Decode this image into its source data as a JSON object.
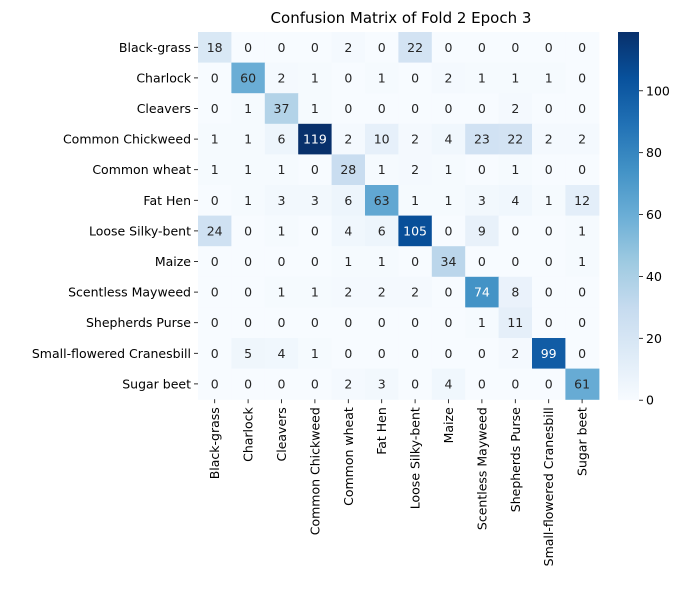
{
  "chart_data": {
    "type": "heatmap",
    "title": "Confusion Matrix of Fold 2 Epoch 3",
    "xlabel": "",
    "ylabel": "",
    "row_labels": [
      "Black-grass",
      "Charlock",
      "Cleavers",
      "Common Chickweed",
      "Common wheat",
      "Fat Hen",
      "Loose Silky-bent",
      "Maize",
      "Scentless Mayweed",
      "Shepherds Purse",
      "Small-flowered Cranesbill",
      "Sugar beet"
    ],
    "col_labels": [
      "Black-grass",
      "Charlock",
      "Cleavers",
      "Common Chickweed",
      "Common wheat",
      "Fat Hen",
      "Loose Silky-bent",
      "Maize",
      "Scentless Mayweed",
      "Shepherds Purse",
      "Small-flowered Cranesbill",
      "Sugar beet"
    ],
    "values": [
      [
        18,
        0,
        0,
        0,
        2,
        0,
        22,
        0,
        0,
        0,
        0,
        0
      ],
      [
        0,
        60,
        2,
        1,
        0,
        1,
        0,
        2,
        1,
        1,
        1,
        0
      ],
      [
        0,
        1,
        37,
        1,
        0,
        0,
        0,
        0,
        0,
        2,
        0,
        0
      ],
      [
        1,
        1,
        6,
        119,
        2,
        10,
        2,
        4,
        23,
        22,
        2,
        2
      ],
      [
        1,
        1,
        1,
        0,
        28,
        1,
        2,
        1,
        0,
        1,
        0,
        0
      ],
      [
        0,
        1,
        3,
        3,
        6,
        63,
        1,
        1,
        3,
        4,
        1,
        12
      ],
      [
        24,
        0,
        1,
        0,
        4,
        6,
        105,
        0,
        9,
        0,
        0,
        1
      ],
      [
        0,
        0,
        0,
        0,
        1,
        1,
        0,
        34,
        0,
        0,
        0,
        1
      ],
      [
        0,
        0,
        1,
        1,
        2,
        2,
        2,
        0,
        74,
        8,
        0,
        0
      ],
      [
        0,
        0,
        0,
        0,
        0,
        0,
        0,
        0,
        1,
        11,
        0,
        0
      ],
      [
        0,
        5,
        4,
        1,
        0,
        0,
        0,
        0,
        0,
        2,
        99,
        0
      ],
      [
        0,
        0,
        0,
        0,
        2,
        3,
        0,
        4,
        0,
        0,
        0,
        61
      ]
    ],
    "vmin": 0,
    "vmax": 119,
    "colormap": "Blues",
    "colorbar_ticks": [
      0,
      20,
      40,
      60,
      80,
      100
    ],
    "colorbar_labels": [
      "0",
      "20",
      "40",
      "60",
      "80",
      "100"
    ],
    "grid": false,
    "colors": {
      "low": "#f7fbff",
      "high": "#08306b",
      "text_dark": "#262626",
      "text_light": "#ffffff"
    }
  }
}
